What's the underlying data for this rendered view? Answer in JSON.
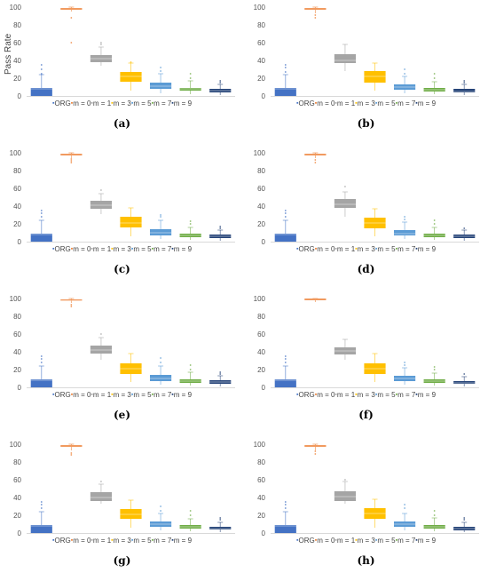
{
  "colors": {
    "ORG": "#4472C4",
    "m = 0": "#ED7D31",
    "m = 1": "#A5A5A5",
    "m = 3": "#FFC000",
    "m = 5": "#5B9BD5",
    "m = 7": "#70AD47",
    "m = 9": "#264478"
  },
  "chart_data": [
    {
      "type": "box",
      "caption": "(a)",
      "ylabel": "Pass Rate",
      "ylim": [
        0,
        100
      ],
      "yticks": [
        0,
        20,
        40,
        60,
        80,
        100
      ],
      "categories": [
        "ORG",
        "m = 0",
        "m = 1",
        "m = 3",
        "m = 5",
        "m = 7",
        "m = 9"
      ],
      "boxes": [
        {
          "min": 0,
          "q1": 0,
          "median": 8,
          "q3": 9,
          "max": 24
        },
        {
          "min": 95,
          "q1": 97,
          "median": 98,
          "q3": 99,
          "max": 100
        },
        {
          "min": 34,
          "q1": 38,
          "median": 42,
          "q3": 46,
          "max": 55
        },
        {
          "min": 6,
          "q1": 16,
          "median": 22,
          "q3": 27,
          "max": 37
        },
        {
          "min": 3,
          "q1": 8,
          "median": 11,
          "q3": 15,
          "max": 25
        },
        {
          "min": 2,
          "q1": 6,
          "median": 8,
          "q3": 9,
          "max": 17
        },
        {
          "min": 1,
          "q1": 4,
          "median": 6,
          "q3": 8,
          "max": 13
        }
      ],
      "outliers": [
        [
          25,
          30,
          35
        ],
        [
          88,
          60
        ],
        [
          58,
          60
        ],
        [
          38
        ],
        [
          28,
          32
        ],
        [
          20,
          25
        ],
        [
          15,
          17
        ]
      ]
    },
    {
      "type": "box",
      "caption": "(b)",
      "ylabel": "",
      "ylim": [
        0,
        100
      ],
      "yticks": [
        0,
        20,
        40,
        60,
        80,
        100
      ],
      "categories": [
        "ORG",
        "m = 0",
        "m = 1",
        "m = 3",
        "m = 5",
        "m = 7",
        "m = 9"
      ],
      "boxes": [
        {
          "min": 0,
          "q1": 0,
          "median": 8,
          "q3": 9,
          "max": 24
        },
        {
          "min": 93,
          "q1": 97,
          "median": 98,
          "q3": 99,
          "max": 100
        },
        {
          "min": 28,
          "q1": 37,
          "median": 40,
          "q3": 47,
          "max": 58
        },
        {
          "min": 6,
          "q1": 15,
          "median": 22,
          "q3": 28,
          "max": 37
        },
        {
          "min": 3,
          "q1": 7,
          "median": 10,
          "q3": 13,
          "max": 22
        },
        {
          "min": 2,
          "q1": 5,
          "median": 7,
          "q3": 9,
          "max": 16
        },
        {
          "min": 1,
          "q1": 4,
          "median": 5,
          "q3": 8,
          "max": 13
        }
      ],
      "outliers": [
        [
          27,
          32,
          35
        ],
        [
          88,
          91
        ],
        [],
        [],
        [
          25,
          30
        ],
        [
          20,
          25
        ],
        [
          15,
          17
        ]
      ]
    },
    {
      "type": "box",
      "caption": "(c)",
      "ylabel": "",
      "ylim": [
        0,
        100
      ],
      "yticks": [
        0,
        20,
        40,
        60,
        80,
        100
      ],
      "categories": [
        "ORG",
        "m = 0",
        "m = 1",
        "m = 3",
        "m = 5",
        "m = 7",
        "m = 9"
      ],
      "boxes": [
        {
          "min": 0,
          "q1": 0,
          "median": 8,
          "q3": 9,
          "max": 24
        },
        {
          "min": 94,
          "q1": 97,
          "median": 98,
          "q3": 99,
          "max": 100
        },
        {
          "min": 31,
          "q1": 37,
          "median": 41,
          "q3": 46,
          "max": 54
        },
        {
          "min": 6,
          "q1": 16,
          "median": 21,
          "q3": 28,
          "max": 38
        },
        {
          "min": 3,
          "q1": 7,
          "median": 10,
          "q3": 14,
          "max": 24
        },
        {
          "min": 2,
          "q1": 5,
          "median": 7,
          "q3": 9,
          "max": 16
        },
        {
          "min": 1,
          "q1": 4,
          "median": 6,
          "q3": 8,
          "max": 13
        }
      ],
      "outliers": [
        [
          28,
          32,
          35
        ],
        [
          89,
          91,
          93
        ],
        [
          58
        ],
        [],
        [
          28,
          30
        ],
        [
          20,
          23
        ],
        [
          15,
          17
        ]
      ]
    },
    {
      "type": "box",
      "caption": "(d)",
      "ylabel": "",
      "ylim": [
        0,
        100
      ],
      "yticks": [
        0,
        20,
        40,
        60,
        80,
        100
      ],
      "categories": [
        "ORG",
        "m = 0",
        "m = 1",
        "m = 3",
        "m = 5",
        "m = 7",
        "m = 9"
      ],
      "boxes": [
        {
          "min": 0,
          "q1": 0,
          "median": 8,
          "q3": 9,
          "max": 24
        },
        {
          "min": 94,
          "q1": 97,
          "median": 98,
          "q3": 99,
          "max": 100
        },
        {
          "min": 28,
          "q1": 38,
          "median": 42,
          "q3": 48,
          "max": 56
        },
        {
          "min": 6,
          "q1": 15,
          "median": 21,
          "q3": 27,
          "max": 37
        },
        {
          "min": 3,
          "q1": 7,
          "median": 9,
          "q3": 13,
          "max": 22
        },
        {
          "min": 2,
          "q1": 5,
          "median": 7,
          "q3": 9,
          "max": 16
        },
        {
          "min": 1,
          "q1": 4,
          "median": 6,
          "q3": 8,
          "max": 13
        }
      ],
      "outliers": [
        [
          28,
          32,
          35
        ],
        [
          89,
          92
        ],
        [
          62
        ],
        [],
        [
          25,
          28
        ],
        [
          20,
          24
        ],
        [
          15
        ]
      ]
    },
    {
      "type": "box",
      "caption": "(e)",
      "ylabel": "",
      "ylim": [
        0,
        100
      ],
      "yticks": [
        0,
        20,
        40,
        60,
        80,
        100
      ],
      "categories": [
        "ORG",
        "m = 0",
        "m = 1",
        "m = 3",
        "m = 5",
        "m = 7",
        "m = 9"
      ],
      "boxes": [
        {
          "min": 0,
          "q1": 0,
          "median": 8,
          "q3": 9,
          "max": 24
        },
        {
          "min": 95,
          "q1": 98,
          "median": 98,
          "q3": 99,
          "max": 100
        },
        {
          "min": 31,
          "q1": 38,
          "median": 42,
          "q3": 47,
          "max": 56
        },
        {
          "min": 6,
          "q1": 15,
          "median": 21,
          "q3": 27,
          "max": 38
        },
        {
          "min": 3,
          "q1": 7,
          "median": 10,
          "q3": 14,
          "max": 24
        },
        {
          "min": 2,
          "q1": 5,
          "median": 7,
          "q3": 9,
          "max": 17
        },
        {
          "min": 1,
          "q1": 4,
          "median": 6,
          "q3": 8,
          "max": 13
        }
      ],
      "outliers": [
        [
          28,
          32,
          35
        ],
        [
          91,
          93
        ],
        [
          60
        ],
        [],
        [
          28,
          33
        ],
        [
          20,
          25
        ],
        [
          15,
          17
        ]
      ]
    },
    {
      "type": "box",
      "caption": "(f)",
      "ylabel": "",
      "ylim": [
        0,
        100
      ],
      "yticks": [
        0,
        20,
        40,
        60,
        80,
        100
      ],
      "categories": [
        "ORG",
        "m = 0",
        "m = 1",
        "m = 3",
        "m = 5",
        "m = 7",
        "m = 9"
      ],
      "boxes": [
        {
          "min": 0,
          "q1": 0,
          "median": 8,
          "q3": 9,
          "max": 24
        },
        {
          "min": 96,
          "q1": 98,
          "median": 99,
          "q3": 100,
          "max": 100
        },
        {
          "min": 31,
          "q1": 37,
          "median": 41,
          "q3": 45,
          "max": 54
        },
        {
          "min": 6,
          "q1": 15,
          "median": 21,
          "q3": 27,
          "max": 38
        },
        {
          "min": 3,
          "q1": 7,
          "median": 10,
          "q3": 13,
          "max": 22
        },
        {
          "min": 2,
          "q1": 5,
          "median": 7,
          "q3": 9,
          "max": 16
        },
        {
          "min": 1,
          "q1": 4,
          "median": 5,
          "q3": 7,
          "max": 12
        }
      ],
      "outliers": [
        [
          28,
          32,
          35
        ],
        [],
        [],
        [],
        [
          25,
          28
        ],
        [
          20,
          23
        ],
        [
          15
        ]
      ]
    },
    {
      "type": "box",
      "caption": "(g)",
      "ylabel": "",
      "ylim": [
        0,
        100
      ],
      "yticks": [
        0,
        20,
        40,
        60,
        80,
        100
      ],
      "categories": [
        "ORG",
        "m = 0",
        "m = 1",
        "m = 3",
        "m = 5",
        "m = 7",
        "m = 9"
      ],
      "boxes": [
        {
          "min": 0,
          "q1": 0,
          "median": 8,
          "q3": 9,
          "max": 24
        },
        {
          "min": 93,
          "q1": 97,
          "median": 98,
          "q3": 99,
          "max": 100
        },
        {
          "min": 33,
          "q1": 36,
          "median": 40,
          "q3": 46,
          "max": 55
        },
        {
          "min": 6,
          "q1": 16,
          "median": 21,
          "q3": 27,
          "max": 37
        },
        {
          "min": 3,
          "q1": 7,
          "median": 10,
          "q3": 13,
          "max": 22
        },
        {
          "min": 2,
          "q1": 5,
          "median": 7,
          "q3": 9,
          "max": 16
        },
        {
          "min": 1,
          "q1": 4,
          "median": 5,
          "q3": 7,
          "max": 12
        }
      ],
      "outliers": [
        [
          28,
          32,
          35
        ],
        [
          88,
          90
        ],
        [
          58
        ],
        [],
        [
          25,
          30
        ],
        [
          20,
          25
        ],
        [
          15,
          17
        ]
      ]
    },
    {
      "type": "box",
      "caption": "(h)",
      "ylabel": "",
      "ylim": [
        0,
        100
      ],
      "yticks": [
        0,
        20,
        40,
        60,
        80,
        100
      ],
      "categories": [
        "ORG",
        "m = 0",
        "m = 1",
        "m = 3",
        "m = 5",
        "m = 7",
        "m = 9"
      ],
      "boxes": [
        {
          "min": 0,
          "q1": 0,
          "median": 8,
          "q3": 9,
          "max": 24
        },
        {
          "min": 93,
          "q1": 97,
          "median": 98,
          "q3": 99,
          "max": 100
        },
        {
          "min": 33,
          "q1": 36,
          "median": 41,
          "q3": 47,
          "max": 58
        },
        {
          "min": 6,
          "q1": 16,
          "median": 22,
          "q3": 28,
          "max": 38
        },
        {
          "min": 3,
          "q1": 7,
          "median": 10,
          "q3": 13,
          "max": 22
        },
        {
          "min": 2,
          "q1": 5,
          "median": 7,
          "q3": 9,
          "max": 17
        },
        {
          "min": 1,
          "q1": 3,
          "median": 5,
          "q3": 7,
          "max": 12
        }
      ],
      "outliers": [
        [
          28,
          32,
          35
        ],
        [
          89,
          92
        ],
        [
          60
        ],
        [],
        [
          28,
          32
        ],
        [
          20,
          25
        ],
        [
          15,
          17
        ]
      ]
    }
  ]
}
